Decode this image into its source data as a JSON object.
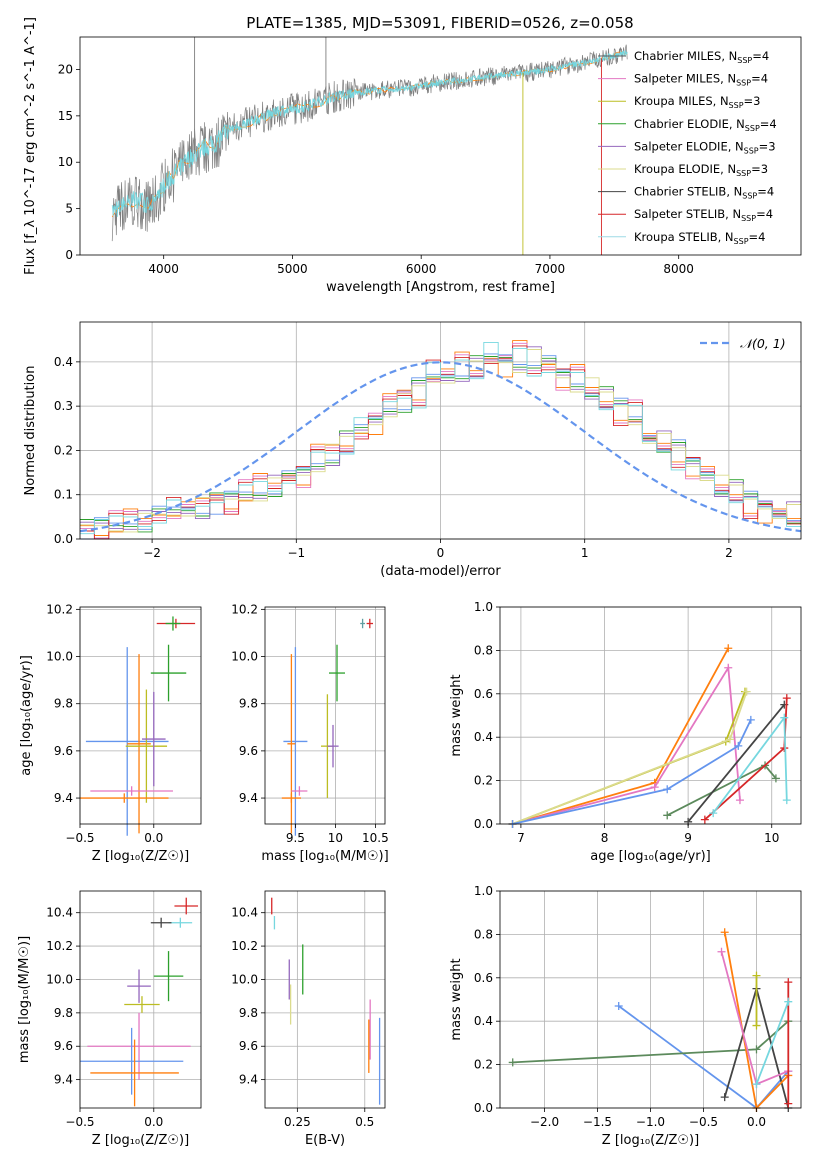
{
  "figure_title": "PLATE=1385, MJD=53091, FIBERID=0526, z=0.058",
  "series_legend": [
    {
      "name": "Chabrier MILES, N",
      "sub": "SSP",
      "suffix": "=4",
      "color": "#5c5c5c"
    },
    {
      "name": "Salpeter MILES, N",
      "sub": "SSP",
      "suffix": "=4",
      "color": "#e377c2"
    },
    {
      "name": "Kroupa MILES, N",
      "sub": "SSP",
      "suffix": "=3",
      "color": "#bcbd22"
    },
    {
      "name": "Chabrier ELODIE, N",
      "sub": "SSP",
      "suffix": "=4",
      "color": "#2ca02c"
    },
    {
      "name": "Salpeter ELODIE, N",
      "sub": "SSP",
      "suffix": "=3",
      "color": "#9467bd"
    },
    {
      "name": "Kroupa ELODIE, N",
      "sub": "SSP",
      "suffix": "=3",
      "color": "#dbdb8d"
    },
    {
      "name": "Chabrier STELIB, N",
      "sub": "SSP",
      "suffix": "=4",
      "color": "#444444"
    },
    {
      "name": "Salpeter STELIB, N",
      "sub": "SSP",
      "suffix": "=4",
      "color": "#d62728"
    },
    {
      "name": "Kroupa STELIB, N",
      "sub": "SSP",
      "suffix": "=4",
      "color": "#9edae5"
    }
  ],
  "chart_data": [
    {
      "id": "spectrum",
      "type": "line",
      "xlabel": "wavelength [Angstrom, rest frame]",
      "ylabel": "Flux [f_λ 10^-17 erg cm^-2 s^-1 A^-1]",
      "xlim": [
        3350,
        8950
      ],
      "ylim": [
        0,
        23.5
      ],
      "xticks": [
        4000,
        5000,
        6000,
        7000,
        8000
      ],
      "yticks": [
        0,
        5,
        10,
        15,
        20
      ],
      "grid": false,
      "legend": "right",
      "data_color": "#7f7f7f",
      "model_color": "#76d7df",
      "model_alt_color": "#ff7f0e",
      "data_x": [
        3600,
        3700,
        3800,
        3900,
        4000,
        4100,
        4200,
        4300,
        4400,
        4500,
        4700,
        4900,
        5100,
        5300,
        5500,
        5700,
        5900,
        6100,
        6300,
        6500,
        6700,
        6900,
        7100,
        7300,
        7400,
        7500,
        7600
      ],
      "data_y": [
        4.5,
        5.5,
        6,
        5,
        7.5,
        9,
        10.5,
        11.5,
        12,
        13.5,
        14.5,
        15.5,
        16,
        17,
        17.5,
        17.8,
        18,
        18.5,
        18.8,
        19.2,
        19.5,
        19.8,
        20.3,
        20.8,
        21.2,
        21.5,
        21.8
      ]
    },
    {
      "id": "residuals",
      "type": "step",
      "xlabel": "(data-model)/error",
      "ylabel": "Normed distribution",
      "xlim": [
        -2.5,
        2.5
      ],
      "ylim": [
        0,
        0.49
      ],
      "xticks": [
        -2,
        -1,
        0,
        1,
        2
      ],
      "xtick_labels": [
        "−2",
        "−1",
        "0",
        "1",
        "2"
      ],
      "yticks": [
        0.0,
        0.1,
        0.2,
        0.3,
        0.4
      ],
      "grid": true,
      "legend_label": "𝒩(0, 1)",
      "gaussian_color": "#6495ed",
      "bin_width": 0.1,
      "bin_start": -2.5,
      "hist_a": [
        0.02,
        0.03,
        0.03,
        0.04,
        0.04,
        0.05,
        0.06,
        0.07,
        0.07,
        0.08,
        0.09,
        0.1,
        0.11,
        0.12,
        0.13,
        0.15,
        0.17,
        0.19,
        0.22,
        0.24,
        0.27,
        0.3,
        0.31,
        0.34,
        0.36,
        0.37,
        0.38,
        0.39,
        0.4,
        0.41,
        0.4,
        0.41,
        0.39,
        0.37,
        0.35,
        0.34,
        0.32,
        0.3,
        0.27,
        0.24,
        0.22,
        0.2,
        0.17,
        0.15,
        0.12,
        0.11,
        0.09,
        0.08,
        0.07,
        0.06
      ],
      "hist_b": [
        0.03,
        0.02,
        0.04,
        0.05,
        0.04,
        0.06,
        0.07,
        0.06,
        0.08,
        0.1,
        0.08,
        0.11,
        0.13,
        0.12,
        0.15,
        0.14,
        0.19,
        0.2,
        0.21,
        0.25,
        0.26,
        0.31,
        0.33,
        0.32,
        0.38,
        0.36,
        0.41,
        0.38,
        0.42,
        0.39,
        0.43,
        0.38,
        0.4,
        0.36,
        0.37,
        0.33,
        0.31,
        0.28,
        0.29,
        0.22,
        0.21,
        0.18,
        0.16,
        0.14,
        0.11,
        0.1,
        0.07,
        0.06,
        0.05,
        0.04
      ]
    },
    {
      "id": "age_vs_Z",
      "type": "scatter",
      "xlabel": "Z [log₁₀(Z/Z☉)]",
      "ylabel": "age  [log₁₀(age/yr)]",
      "xlim": [
        -0.5,
        0.32
      ],
      "ylim": [
        9.29,
        10.21
      ],
      "xticks": [
        -0.5,
        0.0
      ],
      "xtick_labels": [
        "−0.5",
        "0.0"
      ],
      "yticks": [
        9.4,
        9.6,
        9.8,
        10.0,
        10.2
      ],
      "points": [
        {
          "x": 0.15,
          "y": 10.14,
          "xe": 0.13,
          "ye": 0.02,
          "c": "#d62728"
        },
        {
          "x": 0.13,
          "y": 10.14,
          "xe": 0.05,
          "ye": 0.03,
          "c": "#2ca02c"
        },
        {
          "x": 0.1,
          "y": 9.93,
          "xe": 0.12,
          "ye": 0.12,
          "c": "#2ca02c"
        },
        {
          "x": -0.18,
          "y": 9.64,
          "xe": 0.28,
          "ye": 0.4,
          "c": "#6495ed"
        },
        {
          "x": -0.1,
          "y": 9.63,
          "xe": 0.08,
          "ye": 0.38,
          "c": "#ff7f0e"
        },
        {
          "x": -0.05,
          "y": 9.62,
          "xe": 0.14,
          "ye": 0.24,
          "c": "#bcbd22"
        },
        {
          "x": 0.0,
          "y": 9.65,
          "xe": 0.08,
          "ye": 0.2,
          "c": "#9467bd"
        },
        {
          "x": -0.2,
          "y": 9.4,
          "xe": 0.3,
          "ye": 0.02,
          "c": "#ff7f0e"
        },
        {
          "x": -0.15,
          "y": 9.43,
          "xe": 0.28,
          "ye": 0.02,
          "c": "#e377c2"
        }
      ]
    },
    {
      "id": "age_vs_mass",
      "type": "scatter",
      "xlabel": "mass [log₁₀(M/M☉)]",
      "ylabel": "",
      "xlim": [
        9.12,
        10.62
      ],
      "ylim": [
        9.29,
        10.21
      ],
      "xticks": [
        9.5,
        10.0,
        10.5
      ],
      "yticks": [
        9.4,
        9.6,
        9.8,
        10.0,
        10.2
      ],
      "points": [
        {
          "x": 10.43,
          "y": 10.14,
          "xe": 0.04,
          "ye": 0.02,
          "c": "#d62728"
        },
        {
          "x": 10.34,
          "y": 10.14,
          "xe": 0.03,
          "ye": 0.02,
          "c": "#5f9ea0"
        },
        {
          "x": 10.02,
          "y": 9.93,
          "xe": 0.1,
          "ye": 0.12,
          "c": "#2ca02c"
        },
        {
          "x": 9.5,
          "y": 9.64,
          "xe": 0.15,
          "ye": 0.4,
          "c": "#6495ed"
        },
        {
          "x": 9.45,
          "y": 9.63,
          "xe": 0.05,
          "ye": 0.38,
          "c": "#ff7f0e"
        },
        {
          "x": 9.9,
          "y": 9.62,
          "xe": 0.08,
          "ye": 0.22,
          "c": "#bcbd22"
        },
        {
          "x": 9.97,
          "y": 9.62,
          "xe": 0.07,
          "ye": 0.09,
          "c": "#9467bd"
        },
        {
          "x": 9.45,
          "y": 9.4,
          "xe": 0.12,
          "ye": 0.02,
          "c": "#ff7f0e"
        },
        {
          "x": 9.55,
          "y": 9.43,
          "xe": 0.1,
          "ye": 0.02,
          "c": "#e377c2"
        }
      ]
    },
    {
      "id": "weight_vs_age",
      "type": "line",
      "xlabel": "age  [log₁₀(age/yr)]",
      "ylabel": "mass weight",
      "xlim": [
        6.75,
        10.35
      ],
      "ylim": [
        0,
        1.0
      ],
      "xticks": [
        7,
        8,
        9,
        10
      ],
      "yticks": [
        0.0,
        0.2,
        0.4,
        0.6,
        0.8,
        1.0
      ],
      "series": [
        {
          "c": "#ff7f0e",
          "x": [
            6.9,
            8.6,
            9.48
          ],
          "y": [
            0.0,
            0.19,
            0.81
          ]
        },
        {
          "c": "#e377c2",
          "x": [
            6.9,
            8.6,
            9.48,
            9.62
          ],
          "y": [
            0.0,
            0.17,
            0.72,
            0.11
          ]
        },
        {
          "c": "#bcbd22",
          "x": [
            6.9,
            9.45,
            9.68
          ],
          "y": [
            0.0,
            0.38,
            0.61
          ]
        },
        {
          "c": "#dbdb8d",
          "x": [
            6.9,
            9.5,
            9.7
          ],
          "y": [
            0.0,
            0.39,
            0.61
          ]
        },
        {
          "c": "#6495ed",
          "x": [
            6.9,
            8.75,
            9.6,
            9.75
          ],
          "y": [
            0.0,
            0.16,
            0.36,
            0.48
          ]
        },
        {
          "c": "#5c8a5c",
          "x": [
            8.75,
            9.92,
            10.05
          ],
          "y": [
            0.04,
            0.27,
            0.21
          ]
        },
        {
          "c": "#444444",
          "x": [
            9.0,
            10.15
          ],
          "y": [
            0.01,
            0.55
          ]
        },
        {
          "c": "#d62728",
          "x": [
            9.2,
            10.15,
            10.18
          ],
          "y": [
            0.02,
            0.35,
            0.58
          ]
        },
        {
          "c": "#76d7df",
          "x": [
            9.3,
            10.15,
            10.18
          ],
          "y": [
            0.05,
            0.49,
            0.11
          ]
        }
      ]
    },
    {
      "id": "mass_vs_Z",
      "type": "scatter",
      "xlabel": "Z [log₁₀(Z/Z☉)]",
      "ylabel": "mass [log₁₀(M/M☉)]",
      "xlim": [
        -0.5,
        0.32
      ],
      "ylim": [
        9.23,
        10.53
      ],
      "xticks": [
        -0.5,
        0.0
      ],
      "xtick_labels": [
        "−0.5",
        "0.0"
      ],
      "yticks": [
        9.4,
        9.6,
        9.8,
        10.0,
        10.2,
        10.4
      ],
      "points": [
        {
          "x": 0.22,
          "y": 10.44,
          "xe": 0.08,
          "ye": 0.05,
          "c": "#d62728"
        },
        {
          "x": 0.18,
          "y": 10.34,
          "xe": 0.08,
          "ye": 0.03,
          "c": "#76d7df"
        },
        {
          "x": 0.05,
          "y": 10.34,
          "xe": 0.07,
          "ye": 0.03,
          "c": "#444444"
        },
        {
          "x": 0.1,
          "y": 10.02,
          "xe": 0.1,
          "ye": 0.15,
          "c": "#2ca02c"
        },
        {
          "x": -0.1,
          "y": 9.96,
          "xe": 0.08,
          "ye": 0.1,
          "c": "#9467bd"
        },
        {
          "x": -0.08,
          "y": 9.85,
          "xe": 0.12,
          "ye": 0.05,
          "c": "#bcbd22"
        },
        {
          "x": -0.1,
          "y": 9.6,
          "xe": 0.35,
          "ye": 0.2,
          "c": "#e377c2"
        },
        {
          "x": -0.15,
          "y": 9.51,
          "xe": 0.35,
          "ye": 0.2,
          "c": "#6495ed"
        },
        {
          "x": -0.13,
          "y": 9.44,
          "xe": 0.3,
          "ye": 0.2,
          "c": "#ff7f0e"
        }
      ]
    },
    {
      "id": "mass_vs_ebv",
      "type": "scatter",
      "xlabel": "E(B-V)",
      "ylabel": "",
      "xlim": [
        0.13,
        0.575
      ],
      "ylim": [
        9.23,
        10.53
      ],
      "xticks": [
        0.25,
        0.5
      ],
      "yticks": [
        9.4,
        9.6,
        9.8,
        10.0,
        10.2,
        10.4
      ],
      "points": [
        {
          "x": 0.155,
          "y": 10.44,
          "xe": 0,
          "ye": 0.05,
          "c": "#d62728"
        },
        {
          "x": 0.165,
          "y": 10.34,
          "xe": 0,
          "ye": 0.04,
          "c": "#76d7df"
        },
        {
          "x": 0.27,
          "y": 10.06,
          "xe": 0,
          "ye": 0.15,
          "c": "#2ca02c"
        },
        {
          "x": 0.22,
          "y": 10.0,
          "xe": 0,
          "ye": 0.12,
          "c": "#9467bd"
        },
        {
          "x": 0.225,
          "y": 9.85,
          "xe": 0,
          "ye": 0.12,
          "c": "#dbdb8d"
        },
        {
          "x": 0.52,
          "y": 9.7,
          "xe": 0,
          "ye": 0.18,
          "c": "#e377c2"
        },
        {
          "x": 0.515,
          "y": 9.6,
          "xe": 0,
          "ye": 0.16,
          "c": "#ff7f0e"
        },
        {
          "x": 0.555,
          "y": 9.51,
          "xe": 0,
          "ye": 0.26,
          "c": "#6495ed"
        }
      ]
    },
    {
      "id": "weight_vs_Z",
      "type": "line",
      "xlabel": "Z [log₁₀(Z/Z☉)]",
      "ylabel": "mass weight",
      "xlim": [
        -2.42,
        0.42
      ],
      "ylim": [
        0,
        1.0
      ],
      "xticks": [
        -2.0,
        -1.5,
        -1.0,
        -0.5,
        0.0
      ],
      "xtick_labels": [
        "−2.0",
        "−1.5",
        "−1.0",
        "−0.5",
        "0.0"
      ],
      "yticks": [
        0.0,
        0.2,
        0.4,
        0.6,
        0.8,
        1.0
      ],
      "series": [
        {
          "c": "#6495ed",
          "x": [
            -1.3,
            0.0,
            0.3
          ],
          "y": [
            0.47,
            0.0,
            0.17
          ]
        },
        {
          "c": "#5c8a5c",
          "x": [
            -2.3,
            0.0,
            0.3
          ],
          "y": [
            0.21,
            0.27,
            0.4
          ]
        },
        {
          "c": "#444444",
          "x": [
            -0.3,
            0.0,
            0.3
          ],
          "y": [
            0.05,
            0.55,
            0.0
          ]
        },
        {
          "c": "#ff7f0e",
          "x": [
            -0.3,
            0.0,
            0.3
          ],
          "y": [
            0.81,
            0.0,
            0.15
          ]
        },
        {
          "c": "#e377c2",
          "x": [
            -0.33,
            0.0,
            0.3
          ],
          "y": [
            0.72,
            0.11,
            0.17
          ]
        },
        {
          "c": "#bcbd22",
          "x": [
            0.0,
            0.0
          ],
          "y": [
            0.61,
            0.38
          ]
        },
        {
          "c": "#d62728",
          "x": [
            0.3,
            0.3
          ],
          "y": [
            0.02,
            0.58
          ]
        },
        {
          "c": "#76d7df",
          "x": [
            0.0,
            0.3
          ],
          "y": [
            0.11,
            0.49
          ]
        }
      ]
    }
  ]
}
